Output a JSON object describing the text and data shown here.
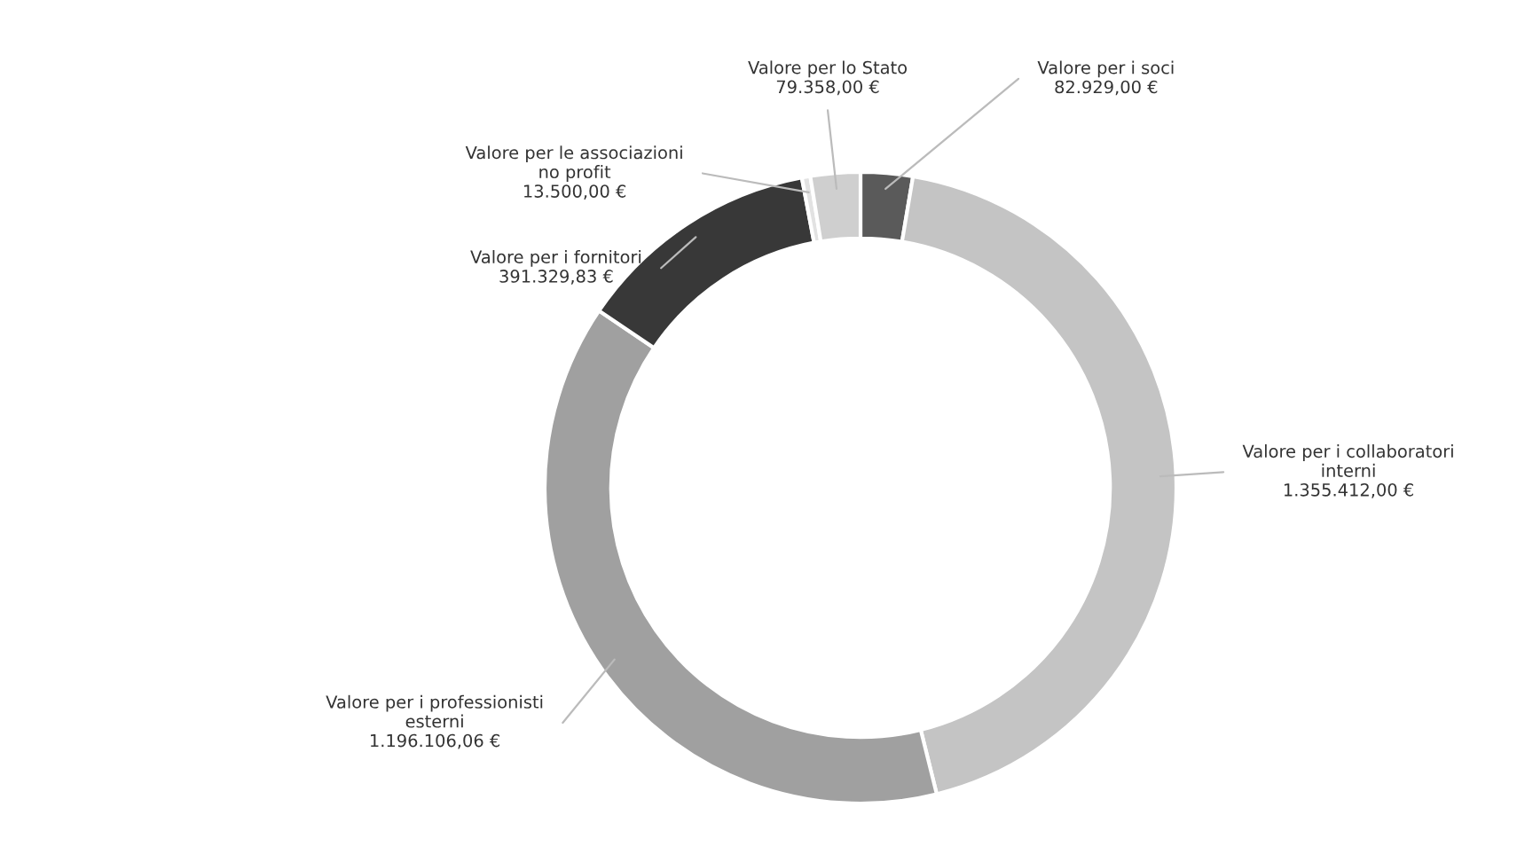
{
  "chart_data": {
    "type": "donut",
    "categories": [
      "Valore per i soci",
      "Valore per i collaboratori\ninterni",
      "Valore per i professionisti\nesterni",
      "Valore per i fornitori",
      "Valore per le associazioni\nno profit",
      "Valore per lo Stato"
    ],
    "values": [
      82929.0,
      1355412.0,
      1196106.06,
      391329.83,
      13500.0,
      79358.0
    ],
    "value_labels": [
      "82.929,00 €",
      "1.355.412,00 €",
      "1.196.106,06 €",
      "391.329,83 €",
      "13.500,00 €",
      "79.358,00 €"
    ],
    "colors": [
      "#5a5a5a",
      "#c4c4c4",
      "#a0a0a0",
      "#383838",
      "#e2e2e2",
      "#cfcfcf"
    ]
  }
}
